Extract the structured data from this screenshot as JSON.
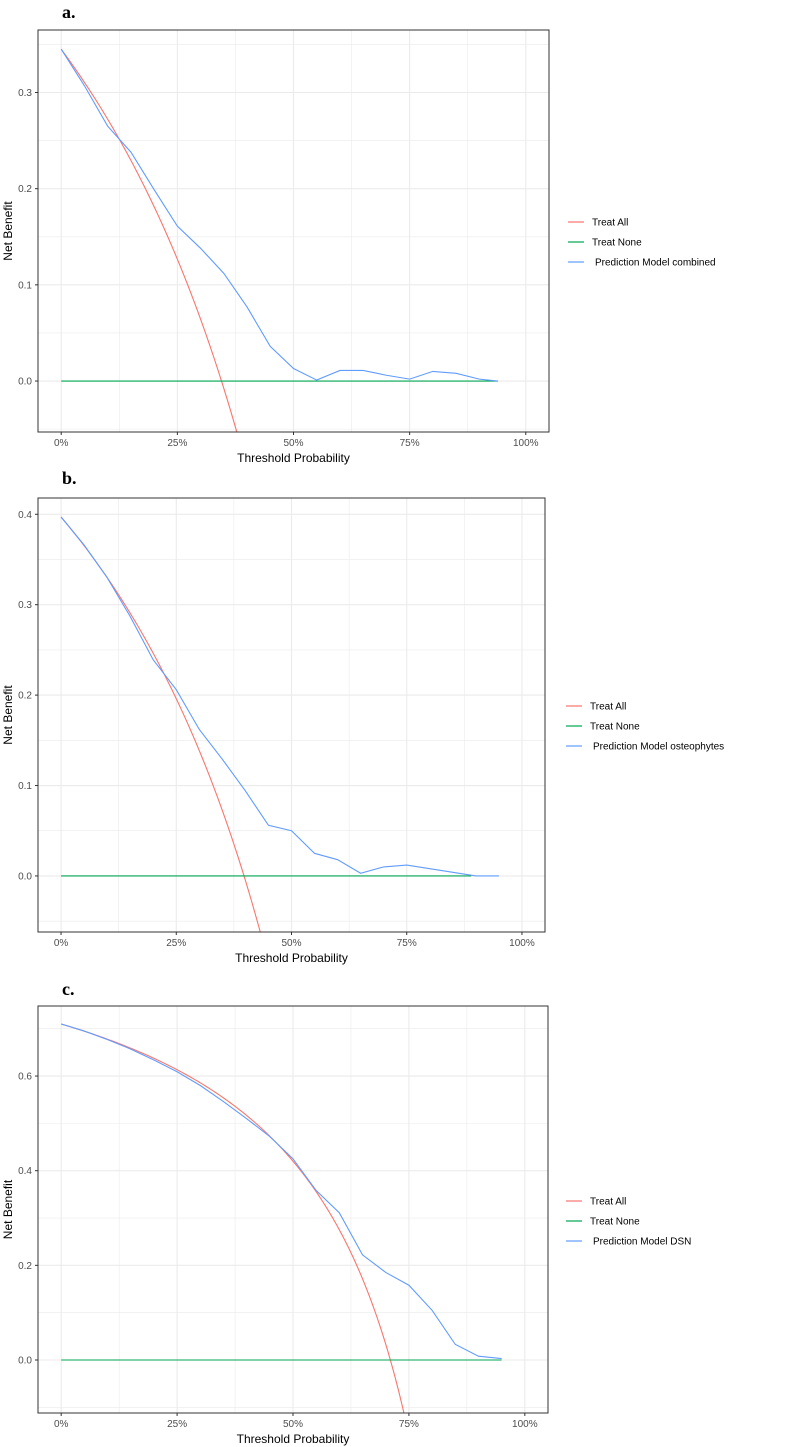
{
  "colors": {
    "treat_all": "#f8766d",
    "treat_none": "#00a651",
    "model": "#619cff",
    "grid": "#ebebeb",
    "frame": "#333333"
  },
  "chart_data": [
    {
      "type": "line",
      "panel_label": "a.",
      "xlabel": "Threshold Probability",
      "ylabel": "Net Benefit",
      "xlim": [
        -0.05,
        1.05
      ],
      "ylim": [
        -0.053,
        0.365
      ],
      "x_ticks": [
        0,
        0.25,
        0.5,
        0.75,
        1.0
      ],
      "x_tick_labels": [
        "0%",
        "25%",
        "50%",
        "75%",
        "100%"
      ],
      "y_ticks": [
        0.0,
        0.1,
        0.2,
        0.3
      ],
      "y_tick_labels": [
        "0.0",
        "0.1",
        "0.2",
        "0.3"
      ],
      "legend": [
        "Treat All",
        "Treat None",
        "Prediction Model combined"
      ],
      "series": [
        {
          "name": "Treat All",
          "prevalence": 0.345
        },
        {
          "name": "Treat None",
          "x": [
            0,
            0.94
          ],
          "y": [
            0,
            0
          ]
        },
        {
          "name": "Prediction Model combined",
          "x": [
            0,
            0.05,
            0.1,
            0.15,
            0.2,
            0.25,
            0.3,
            0.35,
            0.4,
            0.45,
            0.5,
            0.55,
            0.6,
            0.65,
            0.7,
            0.75,
            0.8,
            0.85,
            0.9,
            0.94
          ],
          "y": [
            0.345,
            0.307,
            0.265,
            0.238,
            0.199,
            0.161,
            0.138,
            0.112,
            0.077,
            0.036,
            0.013,
            0.001,
            0.011,
            0.011,
            0.006,
            0.002,
            0.01,
            0.008,
            0.002,
            0.0
          ]
        }
      ]
    },
    {
      "type": "line",
      "panel_label": "b.",
      "xlabel": "Threshold Probability",
      "ylabel": "Net Benefit",
      "xlim": [
        -0.05,
        1.05
      ],
      "ylim": [
        -0.062,
        0.418
      ],
      "x_ticks": [
        0,
        0.25,
        0.5,
        0.75,
        1.0
      ],
      "x_tick_labels": [
        "0%",
        "25%",
        "50%",
        "75%",
        "100%"
      ],
      "y_ticks": [
        0.0,
        0.1,
        0.2,
        0.3,
        0.4
      ],
      "y_tick_labels": [
        "0.0",
        "0.1",
        "0.2",
        "0.3",
        "0.4"
      ],
      "legend": [
        "Treat All",
        "Treat None",
        "Prediction Model osteophytes"
      ],
      "series": [
        {
          "name": "Treat All",
          "prevalence": 0.397
        },
        {
          "name": "Treat None",
          "x": [
            0,
            0.89
          ],
          "y": [
            0,
            0
          ]
        },
        {
          "name": "Prediction Model osteophytes",
          "x": [
            0,
            0.05,
            0.1,
            0.15,
            0.2,
            0.25,
            0.3,
            0.35,
            0.4,
            0.45,
            0.5,
            0.55,
            0.6,
            0.65,
            0.7,
            0.75,
            0.8,
            0.85,
            0.9,
            0.95
          ],
          "y": [
            0.397,
            0.366,
            0.33,
            0.287,
            0.239,
            0.206,
            0.162,
            0.129,
            0.094,
            0.056,
            0.05,
            0.025,
            0.018,
            0.003,
            0.01,
            0.012,
            0.008,
            0.004,
            0.0,
            0.0
          ]
        }
      ]
    },
    {
      "type": "line",
      "panel_label": "c.",
      "xlabel": "Threshold Probability",
      "ylabel": "Net Benefit",
      "xlim": [
        -0.05,
        1.05
      ],
      "ylim": [
        -0.112,
        0.748
      ],
      "x_ticks": [
        0,
        0.25,
        0.5,
        0.75,
        1.0
      ],
      "x_tick_labels": [
        "0%",
        "25%",
        "50%",
        "75%",
        "100%"
      ],
      "y_ticks": [
        0.0,
        0.2,
        0.4,
        0.6
      ],
      "y_tick_labels": [
        "0.0",
        "0.2",
        "0.4",
        "0.6"
      ],
      "legend": [
        "Treat All",
        "Treat None",
        "Prediction Model DSN"
      ],
      "series": [
        {
          "name": "Treat All",
          "prevalence": 0.71
        },
        {
          "name": "Treat None",
          "x": [
            0,
            0.95
          ],
          "y": [
            0,
            0
          ]
        },
        {
          "name": "Prediction Model DSN",
          "x": [
            0,
            0.05,
            0.1,
            0.15,
            0.2,
            0.25,
            0.3,
            0.35,
            0.4,
            0.45,
            0.5,
            0.55,
            0.6,
            0.65,
            0.7,
            0.75,
            0.8,
            0.85,
            0.9,
            0.95
          ],
          "y": [
            0.71,
            0.695,
            0.677,
            0.657,
            0.634,
            0.609,
            0.58,
            0.546,
            0.51,
            0.472,
            0.425,
            0.358,
            0.311,
            0.222,
            0.185,
            0.158,
            0.105,
            0.033,
            0.008,
            0.003
          ]
        }
      ]
    }
  ]
}
